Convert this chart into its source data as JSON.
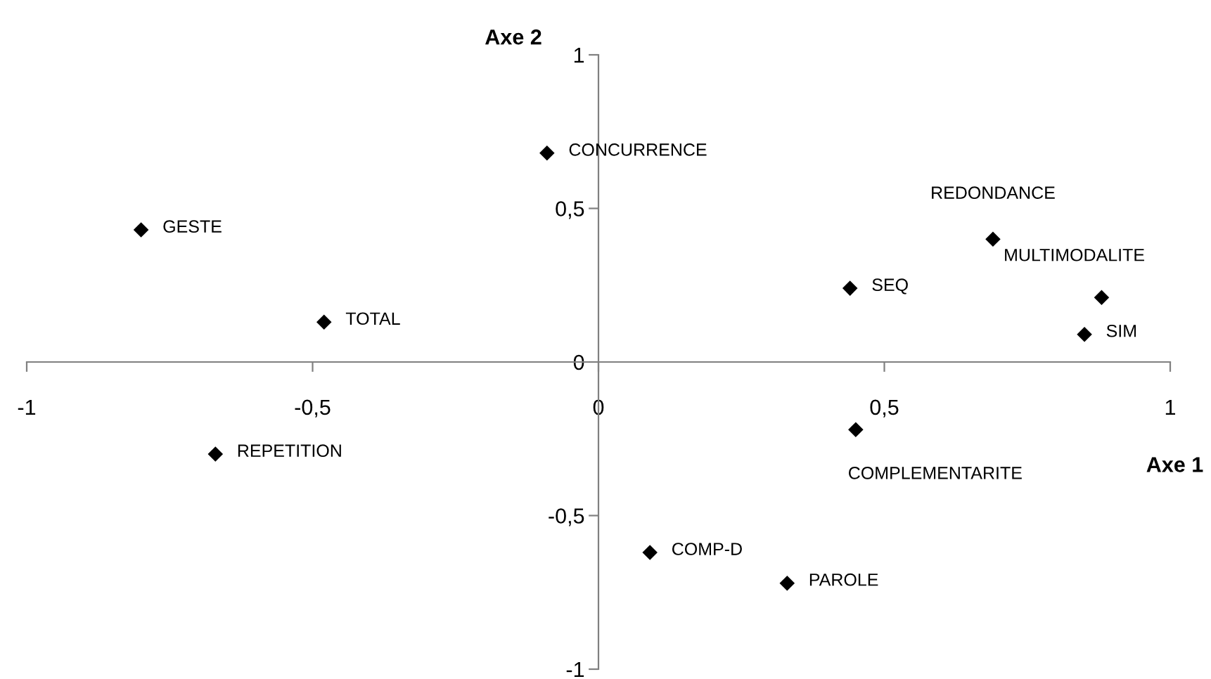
{
  "chart_data": {
    "type": "scatter",
    "xlabel": "Axe 1",
    "ylabel": "Axe 2",
    "x": [
      -0.8,
      -0.09,
      -0.48,
      -0.67,
      0.44,
      0.69,
      0.88,
      0.85,
      0.45,
      0.09,
      0.33
    ],
    "values": [
      0.43,
      0.68,
      0.13,
      -0.3,
      0.24,
      0.4,
      0.21,
      0.09,
      -0.22,
      -0.62,
      -0.72
    ],
    "color": "#000000",
    "marker": "diamond",
    "grid": false,
    "xlim": [
      -1,
      1
    ],
    "ylim": [
      -1,
      1
    ],
    "xticks": [
      -1,
      {
        "value": -0.5,
        "label": "-0,5"
      },
      0,
      {
        "value": 0.5,
        "label": "0,5"
      },
      1
    ],
    "yticks": [
      -1,
      {
        "value": -0.5,
        "label": "-0,5"
      },
      0,
      {
        "value": 0.5,
        "label": "0,5"
      },
      1
    ],
    "annotations": [
      {
        "text": "GESTE",
        "x": -0.8,
        "y": 0.43
      },
      {
        "text": "CONCURRENCE",
        "x": -0.09,
        "y": 0.68
      },
      {
        "text": "TOTAL",
        "x": -0.48,
        "y": 0.13
      },
      {
        "text": "REPETITION",
        "x": -0.67,
        "y": -0.3
      },
      {
        "text": "SEQ",
        "x": 0.44,
        "y": 0.24
      },
      {
        "text": "REDONDANCE",
        "x": 0.69,
        "y": 0.4
      },
      {
        "text": "MULTIMODALITE",
        "x": 0.88,
        "y": 0.21
      },
      {
        "text": "SIM",
        "x": 0.85,
        "y": 0.09
      },
      {
        "text": "COMPLEMENTARITE",
        "x": 0.45,
        "y": -0.22
      },
      {
        "text": "COMP-D",
        "x": 0.09,
        "y": -0.62
      },
      {
        "text": "PAROLE",
        "x": 0.33,
        "y": -0.72
      }
    ]
  }
}
